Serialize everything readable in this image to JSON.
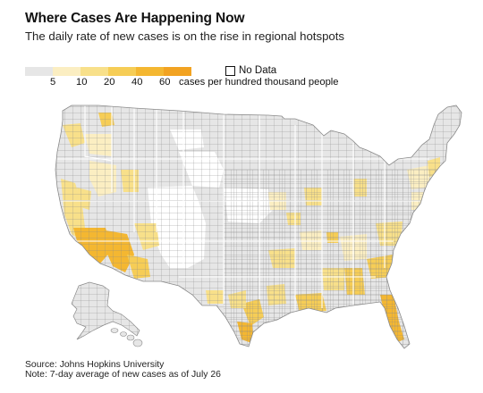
{
  "header": {
    "title": "Where Cases Are Happening Now",
    "subtitle": "The daily rate of new cases is on the rise in regional hotspots"
  },
  "legend": {
    "colors": [
      "#e6e6e6",
      "#fbeec2",
      "#f8e08a",
      "#f6cd56",
      "#f4b731",
      "#f2a322"
    ],
    "ticks": [
      "5",
      "10",
      "20",
      "40",
      "60",
      "cases per hundred thousand people"
    ],
    "no_data_label": "No Data"
  },
  "map": {
    "colors": {
      "background": "#ffffff",
      "county_border": "#8a8a8a",
      "state_border": "#ffffff",
      "low": "#e6e6e6",
      "no_data": "#ffffff",
      "tier1": "#fbeec2",
      "tier2": "#f8e08a",
      "tier3": "#f6cd56",
      "tier4": "#f4b731",
      "tier5": "#f2a322"
    }
  },
  "footer": {
    "source": "Source: Johns Hopkins University",
    "note": "Note: 7-day average of new cases as of July 26"
  }
}
